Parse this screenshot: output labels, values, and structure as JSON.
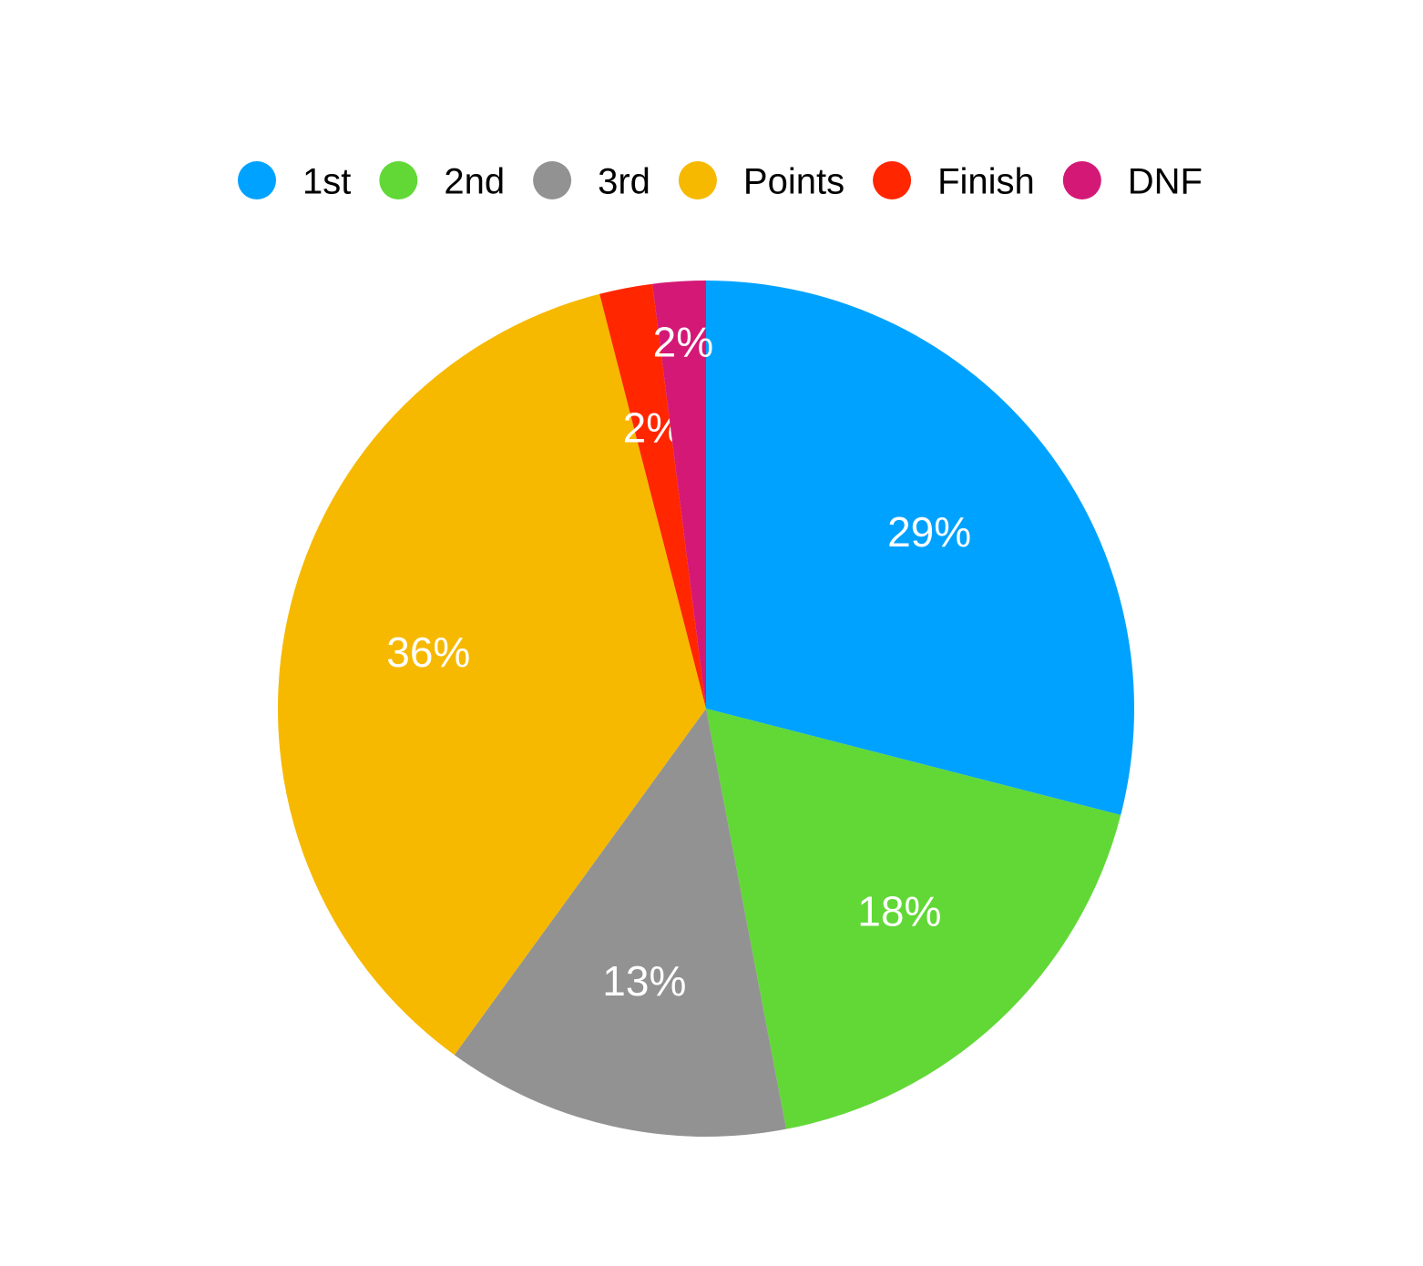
{
  "chart_data": {
    "type": "pie",
    "categories": [
      "1st",
      "2nd",
      "3rd",
      "Points",
      "Finish",
      "DNF"
    ],
    "values": [
      29,
      18,
      13,
      36,
      2,
      2
    ],
    "value_labels": [
      "29%",
      "18%",
      "13%",
      "36%",
      "2%",
      "2%"
    ],
    "colors": [
      "#00a2ff",
      "#61d836",
      "#929292",
      "#f6b900",
      "#ff2600",
      "#d41876"
    ],
    "legend": "top"
  }
}
